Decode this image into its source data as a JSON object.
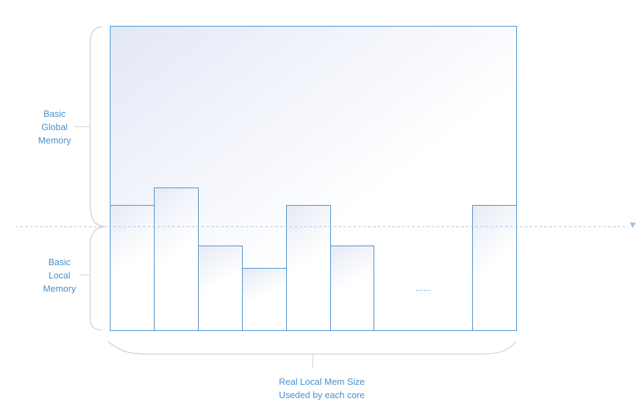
{
  "diagram": {
    "global_label": [
      "Basic",
      "Global",
      "Memory"
    ],
    "local_label": [
      "Basic",
      "Local",
      "Memory"
    ],
    "ellipsis": "......",
    "bottom_label": [
      "Real Local Mem Size",
      "Useded by each core"
    ]
  },
  "colors": {
    "stroke": "#4a8fc9",
    "brace": "#c9cfd6",
    "text": "#4a8fc9",
    "fill_tint": "#e3e8f6"
  }
}
